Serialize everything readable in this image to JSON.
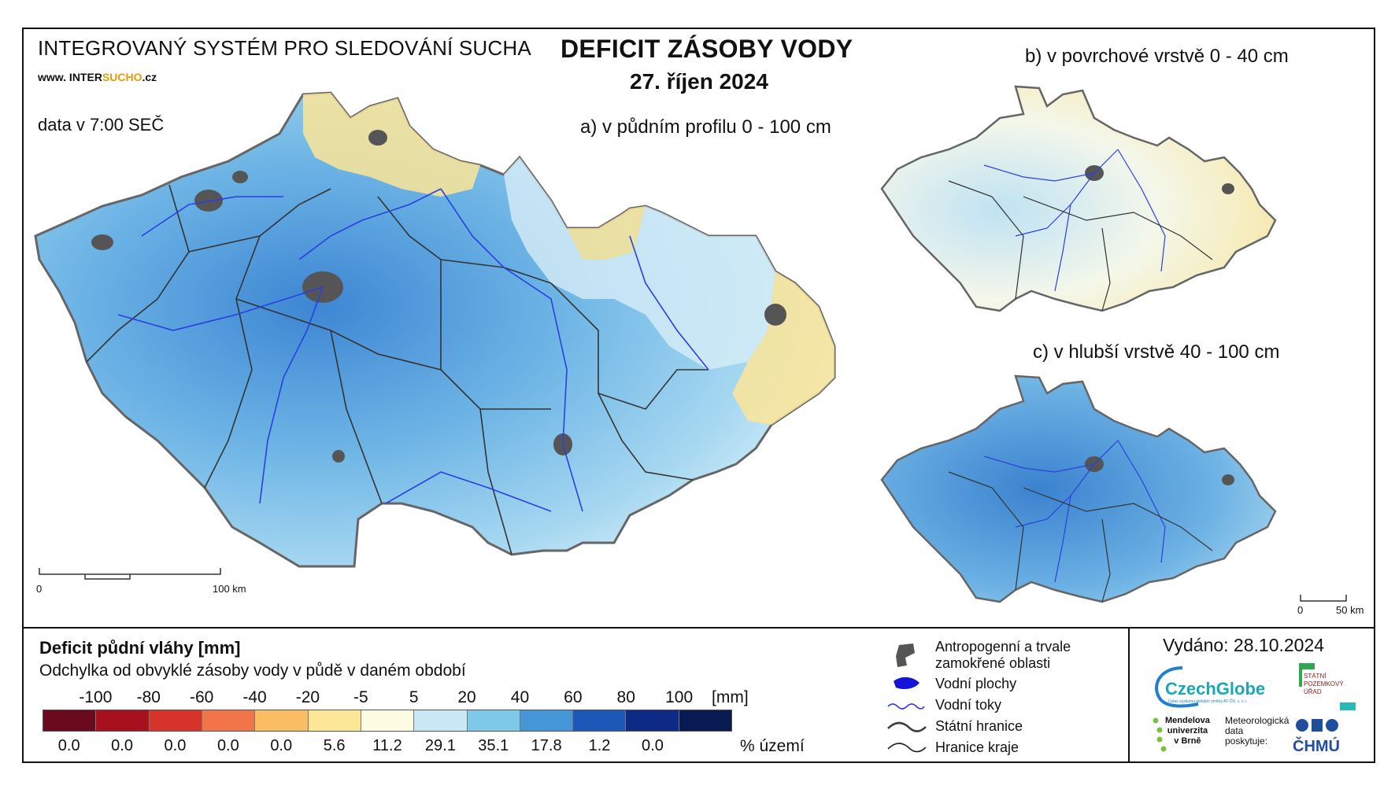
{
  "header": {
    "system_title": "INTEGROVANÝ SYSTÉM PRO SLEDOVÁNÍ SUCHA",
    "site_prefix": "www. INTER",
    "site_highlight": "SUCHO",
    "site_suffix": ".cz",
    "data_time": "data v 7:00 SEČ",
    "title": "DEFICIT ZÁSOBY VODY",
    "date": "27. říjen 2024"
  },
  "maps": {
    "a": {
      "caption": "a) v půdním profilu 0 - 100 cm",
      "scale_zero": "0",
      "scale_end": "100 km"
    },
    "b": {
      "caption": "b) v povrchové vrstvě 0 - 40 cm"
    },
    "c": {
      "caption": "c) v hlubší vrstvě 40 - 100 cm",
      "scale_zero": "0",
      "scale_end": "50 km"
    }
  },
  "legend": {
    "title": "Deficit půdní vláhy  [mm]",
    "subtitle": "Odchylka od obvyklé zásoby vody v půdě v daném období",
    "units": "[mm]",
    "percent_label": "% území",
    "ticks": [
      "-100",
      "-80",
      "-60",
      "-40",
      "-20",
      "-5",
      "5",
      "20",
      "40",
      "60",
      "80",
      "100"
    ],
    "colors": [
      "#6b0a1f",
      "#a8101e",
      "#d6332b",
      "#f2754a",
      "#fbbd62",
      "#fbe795",
      "#fdfbe2",
      "#c8e8f5",
      "#7ec8ea",
      "#4596d9",
      "#1c58b8",
      "#0c2a86",
      "#071a52"
    ],
    "percentages": [
      "0.0",
      "0.0",
      "0.0",
      "0.0",
      "0.0",
      "5.6",
      "11.2",
      "29.1",
      "35.1",
      "17.8",
      "1.2",
      "0.0"
    ]
  },
  "symbols": {
    "anthropogenic": "Antropogenní a trvale\nzamokřené oblasti",
    "anthropogenic_l1": "Antropogenní a trvale",
    "anthropogenic_l2": "zamokřené oblasti",
    "water_bodies": "Vodní plochy",
    "streams": "Vodní toky",
    "state_border": "Státní hranice",
    "region_border": "Hranice kraje"
  },
  "issued": "Vydáno: 28.10.2024",
  "logos": {
    "czechglobe": "CzechGlobe",
    "czechglobe_sub": "Ústav výzkumu globální změny AV ČR, v. v. i.",
    "spu_1": "STÁTNÍ",
    "spu_2": "POZEMKOVÝ",
    "spu_3": "ÚŘAD",
    "mendel_1": "Mendelova",
    "mendel_2": "univerzita",
    "mendel_3": "v Brně",
    "meteo_1": "Meteorologická",
    "meteo_2": "data",
    "meteo_3": "poskytuje:",
    "chmu": "ČHMÚ"
  }
}
